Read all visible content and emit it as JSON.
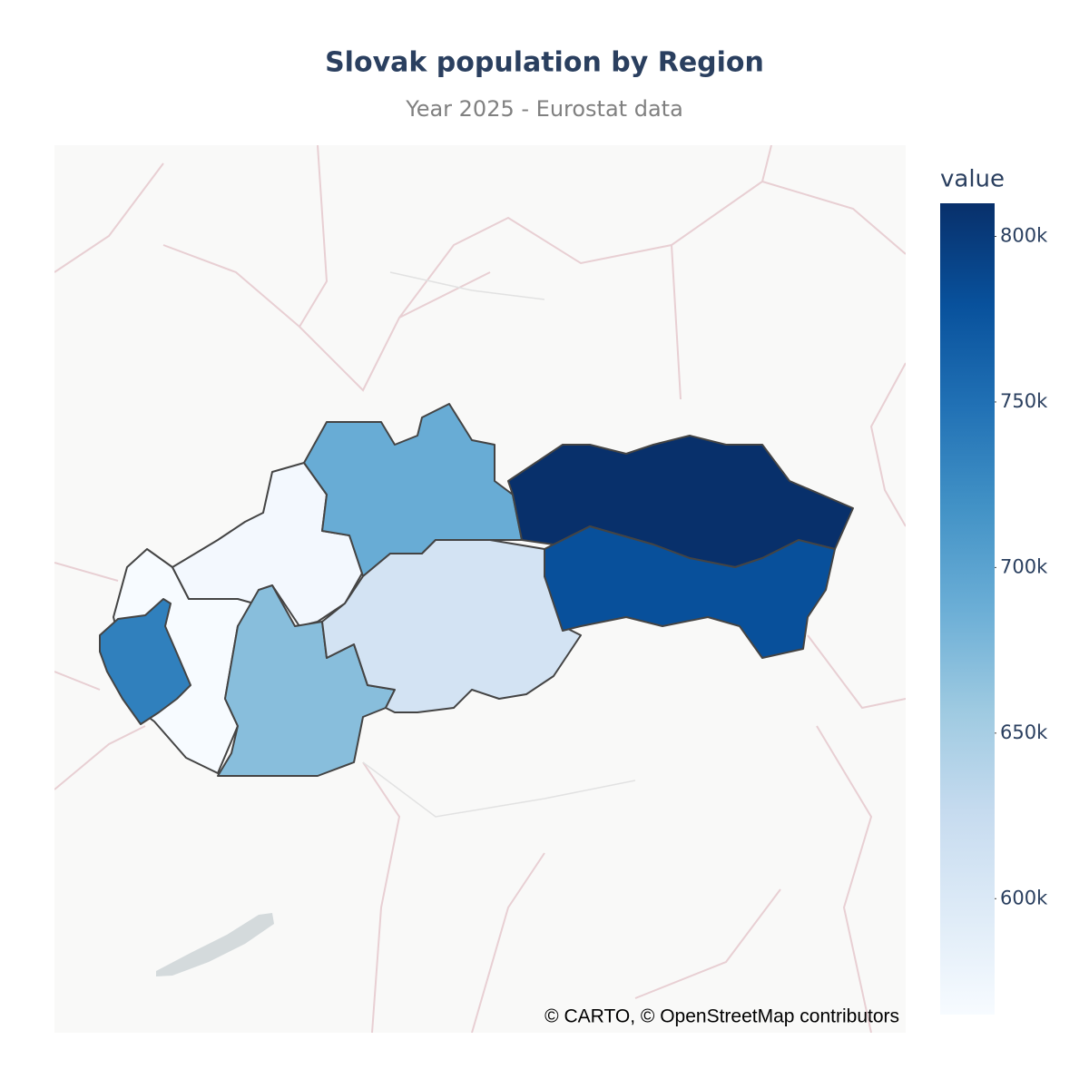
{
  "chart_data": {
    "type": "choropleth",
    "title": "Slovak population by Region",
    "subtitle": "Year 2025 - Eurostat data",
    "colorbar_title": "value",
    "values": [
      735000,
      565000,
      570000,
      670000,
      690000,
      610000,
      810000,
      780000
    ],
    "colorscale": [
      "#f7fbff",
      "#deebf7",
      "#c6dbef",
      "#9ecae1",
      "#6baed6",
      "#4292c6",
      "#2171b5",
      "#08519c",
      "#08306b"
    ],
    "clim": [
      565000,
      810000
    ],
    "cticks": [
      {
        "value": 600000,
        "label": "600k"
      },
      {
        "value": 650000,
        "label": "650k"
      },
      {
        "value": 700000,
        "label": "700k"
      },
      {
        "value": 750000,
        "label": "750k"
      },
      {
        "value": 800000,
        "label": "800k"
      }
    ],
    "attribution": "© CARTO, © OpenStreetMap contributors"
  }
}
